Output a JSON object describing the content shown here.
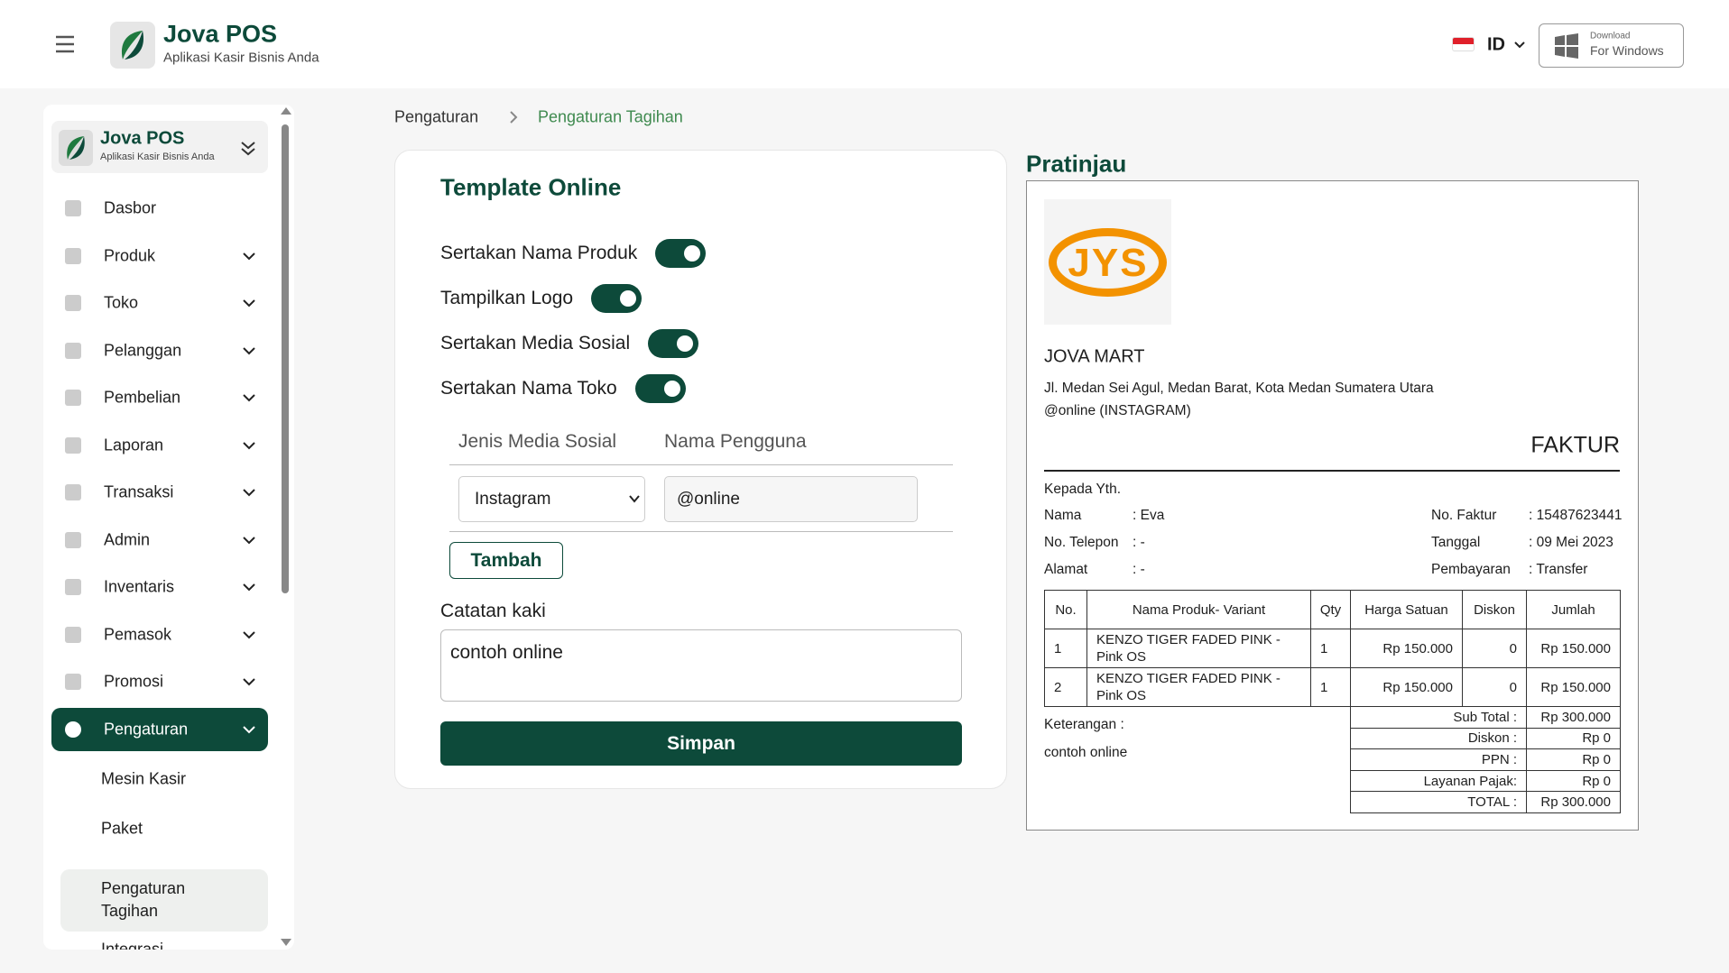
{
  "header": {
    "brand": "Jova POS",
    "tagline": "Aplikasi Kasir Bisnis Anda",
    "language": "ID",
    "download_small": "Download",
    "download_main": "For Windows"
  },
  "sidebar": {
    "brand": "Jova POS",
    "tagline": "Aplikasi Kasir Bisnis Anda",
    "menu": [
      {
        "label": "Dasbor",
        "chevron": false
      },
      {
        "label": "Produk",
        "chevron": true
      },
      {
        "label": "Toko",
        "chevron": true
      },
      {
        "label": "Pelanggan",
        "chevron": true
      },
      {
        "label": "Pembelian",
        "chevron": true
      },
      {
        "label": "Laporan",
        "chevron": true
      },
      {
        "label": "Transaksi",
        "chevron": true
      },
      {
        "label": "Admin",
        "chevron": true
      },
      {
        "label": "Inventaris",
        "chevron": true
      },
      {
        "label": "Pemasok",
        "chevron": true
      },
      {
        "label": "Promosi",
        "chevron": true
      },
      {
        "label": "Pengaturan",
        "chevron": true,
        "active": true
      }
    ],
    "submenu": [
      {
        "label": "Mesin Kasir"
      },
      {
        "label": "Paket"
      },
      {
        "label": "Pengaturan Tagihan",
        "active": true
      },
      {
        "label": "Integrasi"
      }
    ]
  },
  "breadcrumb": [
    "Pengaturan",
    "Pengaturan Tagihan"
  ],
  "form": {
    "title": "Template Online",
    "toggles": [
      {
        "label": "Sertakan Nama Produk",
        "on": true
      },
      {
        "label": "Tampilkan Logo",
        "on": true
      },
      {
        "label": "Sertakan Media Sosial",
        "on": true
      },
      {
        "label": "Sertakan Nama Toko",
        "on": true
      }
    ],
    "social_headers": [
      "Jenis Media Sosial",
      "Nama Pengguna"
    ],
    "social_type": "Instagram",
    "username": "@online",
    "add_button": "Tambah",
    "footer_label": "Catatan kaki",
    "footer_text": "contoh online",
    "save_button": "Simpan"
  },
  "preview": {
    "title": "Pratinjau",
    "logo_text": "JYS",
    "store": "JOVA MART",
    "address": "Jl. Medan Sei Agul, Medan Barat, Kota Medan Sumatera Utara",
    "social": "@online (INSTAGRAM)",
    "invoice_title": "FAKTUR",
    "to": "Kepada Yth.",
    "left_fields": [
      [
        "Nama",
        ": Eva"
      ],
      [
        "No. Telepon",
        ": -"
      ],
      [
        "Alamat",
        ": -"
      ]
    ],
    "right_fields": [
      [
        "No. Faktur",
        ": 15487623441"
      ],
      [
        "Tanggal",
        ": 09 Mei 2023"
      ],
      [
        "Pembayaran",
        ": Transfer"
      ]
    ],
    "table_headers": [
      "No.",
      "Nama Produk- Variant",
      "Qty",
      "Harga Satuan",
      "Diskon",
      "Jumlah"
    ],
    "rows": [
      [
        "1",
        "KENZO TIGER FADED PINK - Pink OS",
        "1",
        "Rp 150.000",
        "0",
        "Rp 150.000"
      ],
      [
        "2",
        "KENZO TIGER FADED PINK - Pink OS",
        "1",
        "Rp 150.000",
        "0",
        "Rp 150.000"
      ]
    ],
    "note_label": "Keterangan :",
    "note": "contoh online",
    "totals": [
      [
        "Sub Total :",
        "Rp 300.000"
      ],
      [
        "Diskon :",
        "Rp 0"
      ],
      [
        "PPN :",
        "Rp 0"
      ],
      [
        "Layanan Pajak:",
        "Rp 0"
      ],
      [
        "TOTAL :",
        "Rp 300.000"
      ]
    ]
  }
}
